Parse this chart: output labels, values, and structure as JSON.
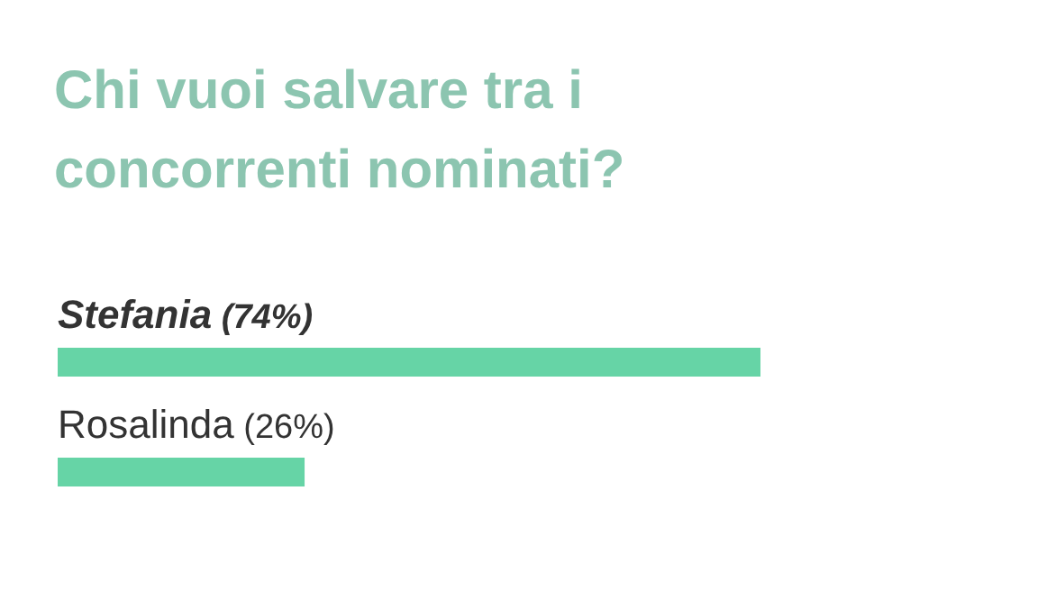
{
  "chart_data": {
    "type": "bar",
    "orientation": "horizontal",
    "title": "Chi vuoi salvare tra i concorrenti nominati?",
    "categories": [
      "Stefania",
      "Rosalinda"
    ],
    "values": [
      74,
      26
    ],
    "value_labels": [
      "(74%)",
      "(26%)"
    ],
    "color": "#66d4a6"
  }
}
